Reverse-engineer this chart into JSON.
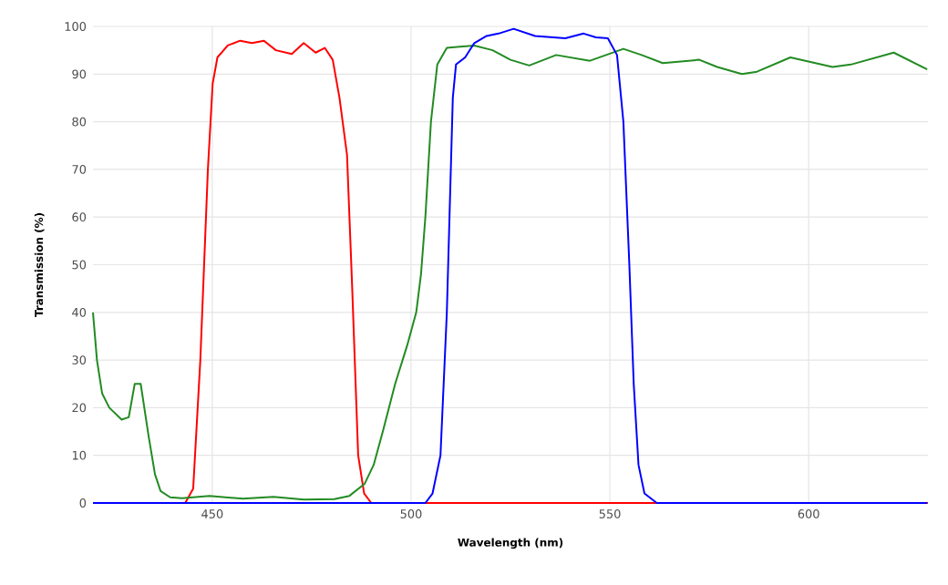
{
  "chart_data": {
    "type": "line",
    "xlabel": "Wavelength (nm)",
    "ylabel": "Transmission (%)",
    "xlim": [
      420,
      630
    ],
    "xticks": [
      450,
      500,
      550,
      600
    ],
    "ylim": [
      0,
      100
    ],
    "yticks": [
      0,
      10,
      20,
      30,
      40,
      50,
      60,
      70,
      80,
      90,
      100
    ],
    "grid": true,
    "legend": false,
    "marker": "none",
    "line_style": "solid",
    "series": [
      {
        "color": "#ff0000",
        "x": [
          420,
          443.2,
          445.2,
          447,
          448.9,
          450.1,
          451.3,
          453.9,
          457,
          460,
          463,
          466,
          470,
          473,
          476,
          478.3,
          480.3,
          482,
          483.9,
          485.2,
          486.7,
          488.2,
          490,
          630
        ],
        "values": [
          0,
          0,
          3,
          30,
          70,
          88,
          93.5,
          96,
          97,
          96.5,
          97,
          95,
          94.2,
          96.5,
          94.5,
          95.5,
          93,
          85,
          73,
          45,
          10,
          2,
          0,
          0
        ]
      },
      {
        "color": "#228b22",
        "x": [
          420,
          421,
          422.3,
          424.1,
          427.2,
          429,
          430.5,
          432,
          434,
          435.6,
          437,
          439.4,
          442.4,
          449.3,
          457.7,
          465.4,
          473,
          480.7,
          484.5,
          488.3,
          490.6,
          492.9,
          496,
          499,
          501.3,
          502.5,
          503.6,
          505,
          506.6,
          509,
          515.9,
          520.5,
          525,
          529.7,
          536.5,
          545,
          553.4,
          558,
          563.3,
          572.5,
          577,
          583.2,
          587,
          595.4,
          606,
          610.6,
          621.4,
          629.8
        ],
        "values": [
          40,
          30,
          23,
          20,
          17.5,
          18,
          25,
          25,
          14,
          6,
          2.5,
          1.2,
          1,
          1.5,
          0.9,
          1.3,
          0.7,
          0.8,
          1.5,
          4,
          8,
          15,
          25,
          33,
          40,
          48,
          60,
          80,
          92,
          95.5,
          96,
          95,
          93,
          91.8,
          94,
          92.8,
          95.3,
          94,
          92.3,
          93,
          91.5,
          90,
          90.5,
          93.5,
          91.5,
          92,
          94.5,
          91
        ]
      },
      {
        "color": "#0000ff",
        "x": [
          420,
          503.6,
          505.4,
          507.4,
          509,
          510.5,
          511.3,
          513.6,
          515.9,
          519,
          522,
          525.8,
          531.2,
          538.8,
          543.4,
          546.5,
          549.5,
          551.8,
          553.4,
          554.9,
          556,
          557.2,
          558.7,
          561.8,
          629.8
        ],
        "values": [
          0,
          0,
          2,
          10,
          40,
          85,
          92,
          93.5,
          96.5,
          98,
          98.5,
          99.5,
          98,
          97.5,
          98.5,
          97.7,
          97.5,
          94,
          80,
          50,
          25,
          8,
          2,
          0,
          0
        ]
      }
    ]
  }
}
